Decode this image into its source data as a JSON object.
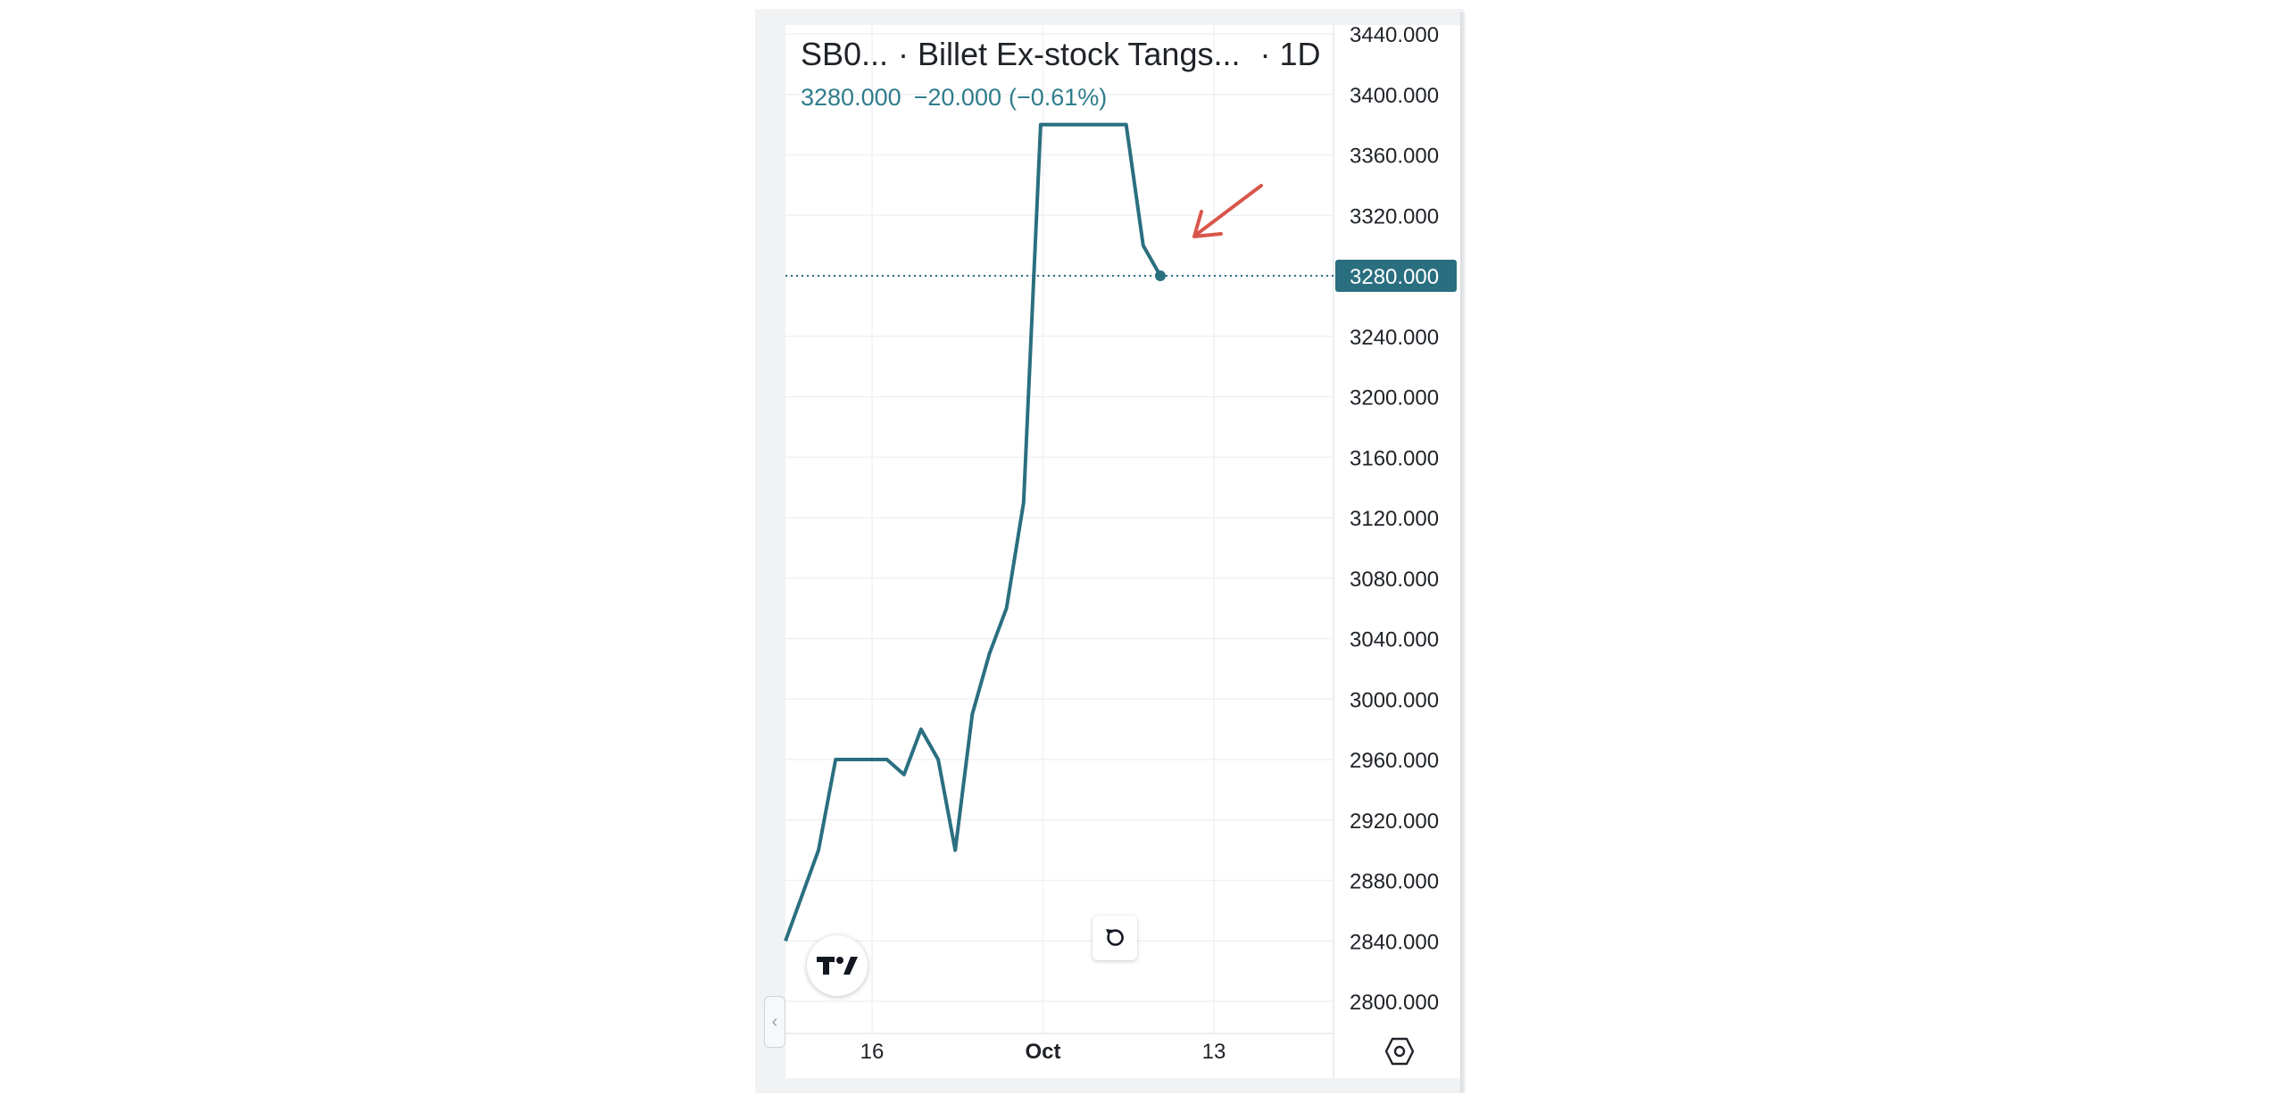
{
  "header": {
    "symbol": "SB0...",
    "name": "· Billet Ex-stock Tangs...",
    "interval": "· 1D",
    "last_price": "3280.000",
    "change": "−20.000",
    "change_pct": "(−0.61%)"
  },
  "controls": {
    "logo_text": "TV",
    "reset_icon": "rotate-ccw-icon",
    "settings_icon": "gear-icon",
    "collapse_icon": "chevron-left-icon"
  },
  "colors": {
    "line": "#2a6f80",
    "accent_text": "#2f7d8c",
    "price_tag_bg": "#2a6f80",
    "annotation_arrow": "#d9564a"
  },
  "chart_data": {
    "type": "line",
    "x_ticks": [
      {
        "label": "16",
        "day": 16
      },
      {
        "label": "Oct",
        "day": 31
      },
      {
        "label": "13",
        "day": 46
      }
    ],
    "points": [
      {
        "day": 8.4,
        "value": 2840
      },
      {
        "day": 11.3,
        "value": 2900
      },
      {
        "day": 12.8,
        "value": 2960
      },
      {
        "day": 17.3,
        "value": 2960
      },
      {
        "day": 18.8,
        "value": 2950
      },
      {
        "day": 20.3,
        "value": 2980
      },
      {
        "day": 21.8,
        "value": 2960
      },
      {
        "day": 23.3,
        "value": 2900
      },
      {
        "day": 24.8,
        "value": 2990
      },
      {
        "day": 26.3,
        "value": 3030
      },
      {
        "day": 27.8,
        "value": 3060
      },
      {
        "day": 29.3,
        "value": 3130
      },
      {
        "day": 30.8,
        "value": 3380
      },
      {
        "day": 38.3,
        "value": 3380
      },
      {
        "day": 39.8,
        "value": 3300
      },
      {
        "day": 41.3,
        "value": 3280
      }
    ],
    "y_ticks": [
      "3440.000",
      "3400.000",
      "3360.000",
      "3320.000",
      "3280.000",
      "3240.000",
      "3200.000",
      "3160.000",
      "3120.000",
      "3080.000",
      "3040.000",
      "3000.000",
      "2960.000",
      "2920.000",
      "2880.000",
      "2840.000",
      "2800.000"
    ],
    "ylim": [
      2800,
      3440
    ],
    "x_range_days": [
      8.4,
      56.5
    ],
    "last_value": 3280,
    "last_value_label": "3280.000",
    "grid": true
  }
}
